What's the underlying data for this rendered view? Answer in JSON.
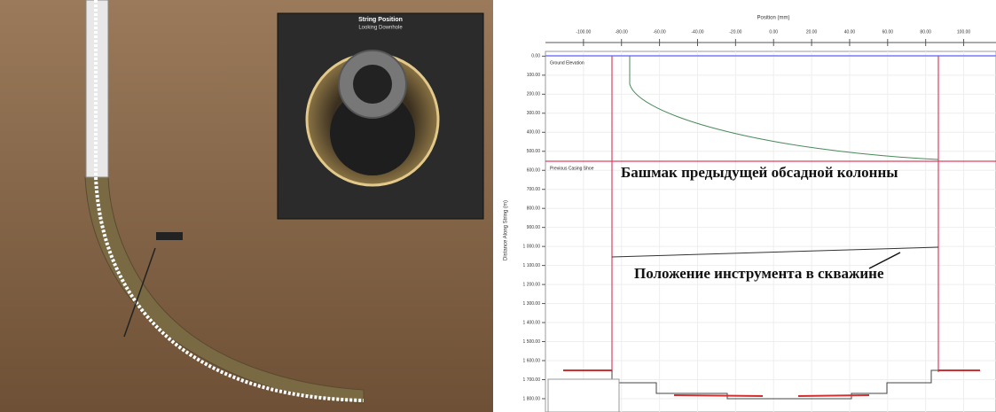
{
  "left_panel": {
    "inset": {
      "title": "String Position",
      "subtitle": "Looking Downhole"
    }
  },
  "right_chart": {
    "x_label": "Position (mm)",
    "y_label": "Distance Along String (m)",
    "xlim": [
      -120,
      117
    ],
    "ylim": [
      -25,
      1870
    ],
    "xticks": [
      {
        "value": -100,
        "label": "-100.00"
      },
      {
        "value": -80,
        "label": "-80.00"
      },
      {
        "value": -60,
        "label": "-60.00"
      },
      {
        "value": -40,
        "label": "-40.00"
      },
      {
        "value": -20,
        "label": "-20.00"
      },
      {
        "value": 0,
        "label": "0.00"
      },
      {
        "value": 20,
        "label": "20.00"
      },
      {
        "value": 40,
        "label": "40.00"
      },
      {
        "value": 60,
        "label": "60.00"
      },
      {
        "value": 80,
        "label": "80.00"
      },
      {
        "value": 100,
        "label": "100.00"
      }
    ],
    "yticks": [
      {
        "value": 0,
        "label": "0.00"
      },
      {
        "value": 100,
        "label": "100.00"
      },
      {
        "value": 200,
        "label": "200.00"
      },
      {
        "value": 300,
        "label": "300.00"
      },
      {
        "value": 400,
        "label": "400.00"
      },
      {
        "value": 500,
        "label": "500.00"
      },
      {
        "value": 600,
        "label": "600.00"
      },
      {
        "value": 700,
        "label": "700.00"
      },
      {
        "value": 800,
        "label": "800.00"
      },
      {
        "value": 900,
        "label": "900.00"
      },
      {
        "value": 1000,
        "label": "1 000.00"
      },
      {
        "value": 1100,
        "label": "1 100.00"
      },
      {
        "value": 1200,
        "label": "1 200.00"
      },
      {
        "value": 1300,
        "label": "1 300.00"
      },
      {
        "value": 1400,
        "label": "1 400.00"
      },
      {
        "value": 1500,
        "label": "1 500.00"
      },
      {
        "value": 1600,
        "label": "1 600.00"
      },
      {
        "value": 1700,
        "label": "1 700.00"
      },
      {
        "value": 1800,
        "label": "1 800.00"
      }
    ],
    "ground_label": "Ground Elevation",
    "shoe_label": "Previous Casing Shoe",
    "annotation_shoe": "Башмак предыдущей обсадной колонны",
    "annotation_tool": "Положение инструмента в скважине"
  }
}
